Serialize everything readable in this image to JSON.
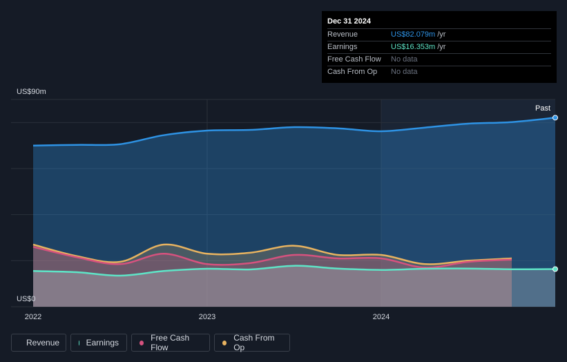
{
  "tooltip": {
    "date": "Dec 31 2024",
    "rows": [
      {
        "label": "Revenue",
        "value": "US$82.079m",
        "unit": "/yr",
        "color": "#2e93e5"
      },
      {
        "label": "Earnings",
        "value": "US$16.353m",
        "unit": "/yr",
        "color": "#5ee5c7"
      },
      {
        "label": "Free Cash Flow",
        "value": "No data",
        "unit": "",
        "color": ""
      },
      {
        "label": "Cash From Op",
        "value": "No data",
        "unit": "",
        "color": ""
      }
    ]
  },
  "legend": [
    {
      "label": "Revenue",
      "color": "#2e93e5"
    },
    {
      "label": "Earnings",
      "color": "#5ee5c7"
    },
    {
      "label": "Free Cash Flow",
      "color": "#d6527e"
    },
    {
      "label": "Cash From Op",
      "color": "#e8b360"
    }
  ],
  "chart_data": {
    "type": "area",
    "y_top_label": "US$90m",
    "y_bottom_label": "US$0",
    "past_label": "Past",
    "ylim": [
      0,
      90
    ],
    "xlim": [
      2022.0,
      2025.0
    ],
    "x_ticks": [
      {
        "value": 2022.0,
        "label": "2022"
      },
      {
        "value": 2023.0,
        "label": "2023"
      },
      {
        "value": 2024.0,
        "label": "2024"
      }
    ],
    "highlight_start": 2024.0,
    "series": [
      {
        "name": "Revenue",
        "color": "#2e93e5",
        "x": [
          2022.0,
          2022.25,
          2022.5,
          2022.75,
          2023.0,
          2023.25,
          2023.5,
          2023.75,
          2024.0,
          2024.25,
          2024.5,
          2024.75,
          2025.0
        ],
        "y": [
          70,
          70.3,
          70.6,
          74.5,
          76.5,
          76.8,
          78,
          77.5,
          76.2,
          77.8,
          79.5,
          80.2,
          82.1
        ]
      },
      {
        "name": "Cash From Op",
        "color": "#e8b360",
        "x": [
          2022.0,
          2022.25,
          2022.5,
          2022.75,
          2023.0,
          2023.25,
          2023.5,
          2023.75,
          2024.0,
          2024.25,
          2024.5,
          2024.75
        ],
        "y": [
          27,
          22,
          19.5,
          27,
          23,
          23.5,
          26.5,
          22.5,
          22.5,
          18.5,
          20,
          21
        ]
      },
      {
        "name": "Free Cash Flow",
        "color": "#d6527e",
        "x": [
          2022.0,
          2022.25,
          2022.5,
          2022.75,
          2023.0,
          2023.25,
          2023.5,
          2023.75,
          2024.0,
          2024.25,
          2024.5,
          2024.75
        ],
        "y": [
          26,
          21.5,
          18.5,
          23,
          18.5,
          19,
          22.5,
          21,
          21,
          17,
          19.5,
          20.5
        ]
      },
      {
        "name": "Earnings",
        "color": "#5ee5c7",
        "x": [
          2022.0,
          2022.25,
          2022.5,
          2022.75,
          2023.0,
          2023.25,
          2023.5,
          2023.75,
          2024.0,
          2024.25,
          2024.5,
          2024.75,
          2025.0
        ],
        "y": [
          15.5,
          15,
          13.5,
          15.5,
          16.5,
          16.2,
          17.8,
          16.6,
          16,
          16.5,
          16.6,
          16.3,
          16.35
        ]
      }
    ]
  }
}
